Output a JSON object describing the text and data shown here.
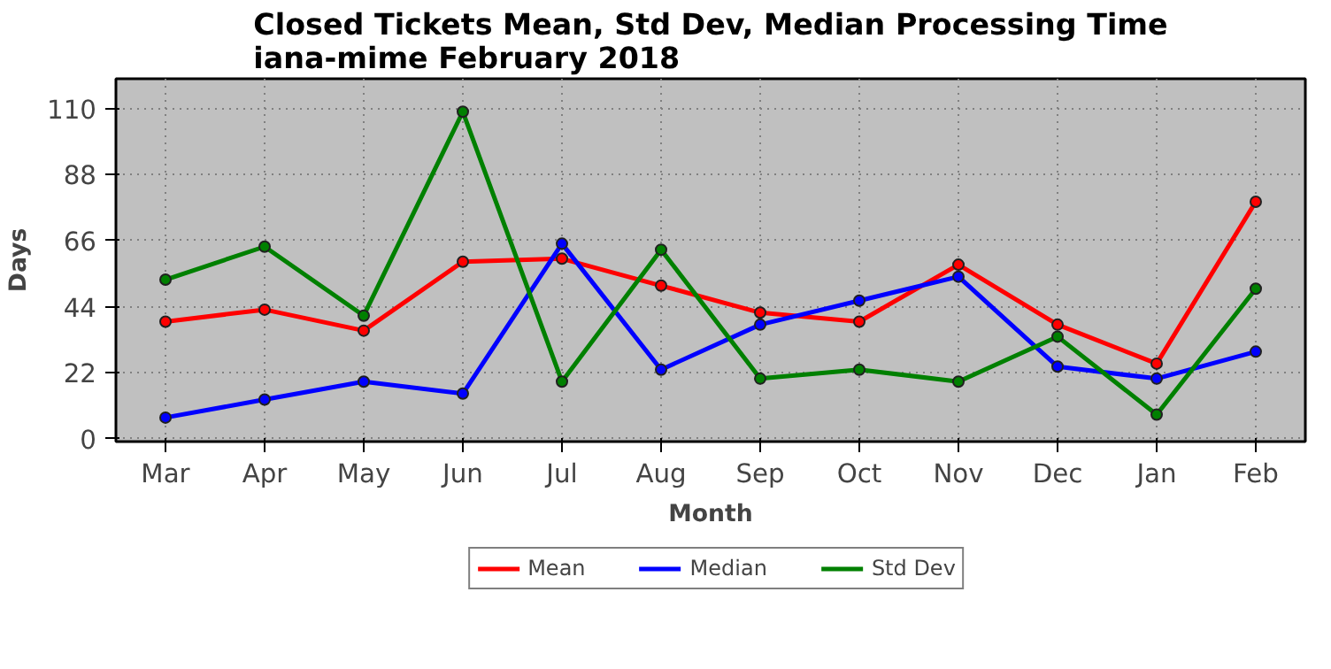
{
  "chart_data": {
    "type": "line",
    "title": "Closed Tickets Mean, Std Dev, Median Processing Time\niana-mime February 2018",
    "xlabel": "Month",
    "ylabel": "Days",
    "categories": [
      "Mar",
      "Apr",
      "May",
      "Jun",
      "Jul",
      "Aug",
      "Sep",
      "Oct",
      "Nov",
      "Dec",
      "Jan",
      "Feb"
    ],
    "series": [
      {
        "name": "Mean",
        "color": "#ff0000",
        "values": [
          39,
          43,
          36,
          59,
          60,
          51,
          42,
          39,
          58,
          38,
          25,
          79
        ]
      },
      {
        "name": "Median",
        "color": "#0000ff",
        "values": [
          7,
          13,
          19,
          15,
          65,
          23,
          38,
          46,
          54,
          24,
          20,
          29
        ]
      },
      {
        "name": "Std Dev",
        "color": "#008000",
        "values": [
          53,
          64,
          41,
          109,
          19,
          63,
          20,
          23,
          19,
          34,
          8,
          50
        ]
      }
    ],
    "ylim": [
      -1,
      120
    ],
    "yticks": [
      0,
      22,
      44,
      66,
      88,
      110
    ],
    "grid": true,
    "legend": "bottom",
    "marker": "circle",
    "line_style": "solid"
  }
}
